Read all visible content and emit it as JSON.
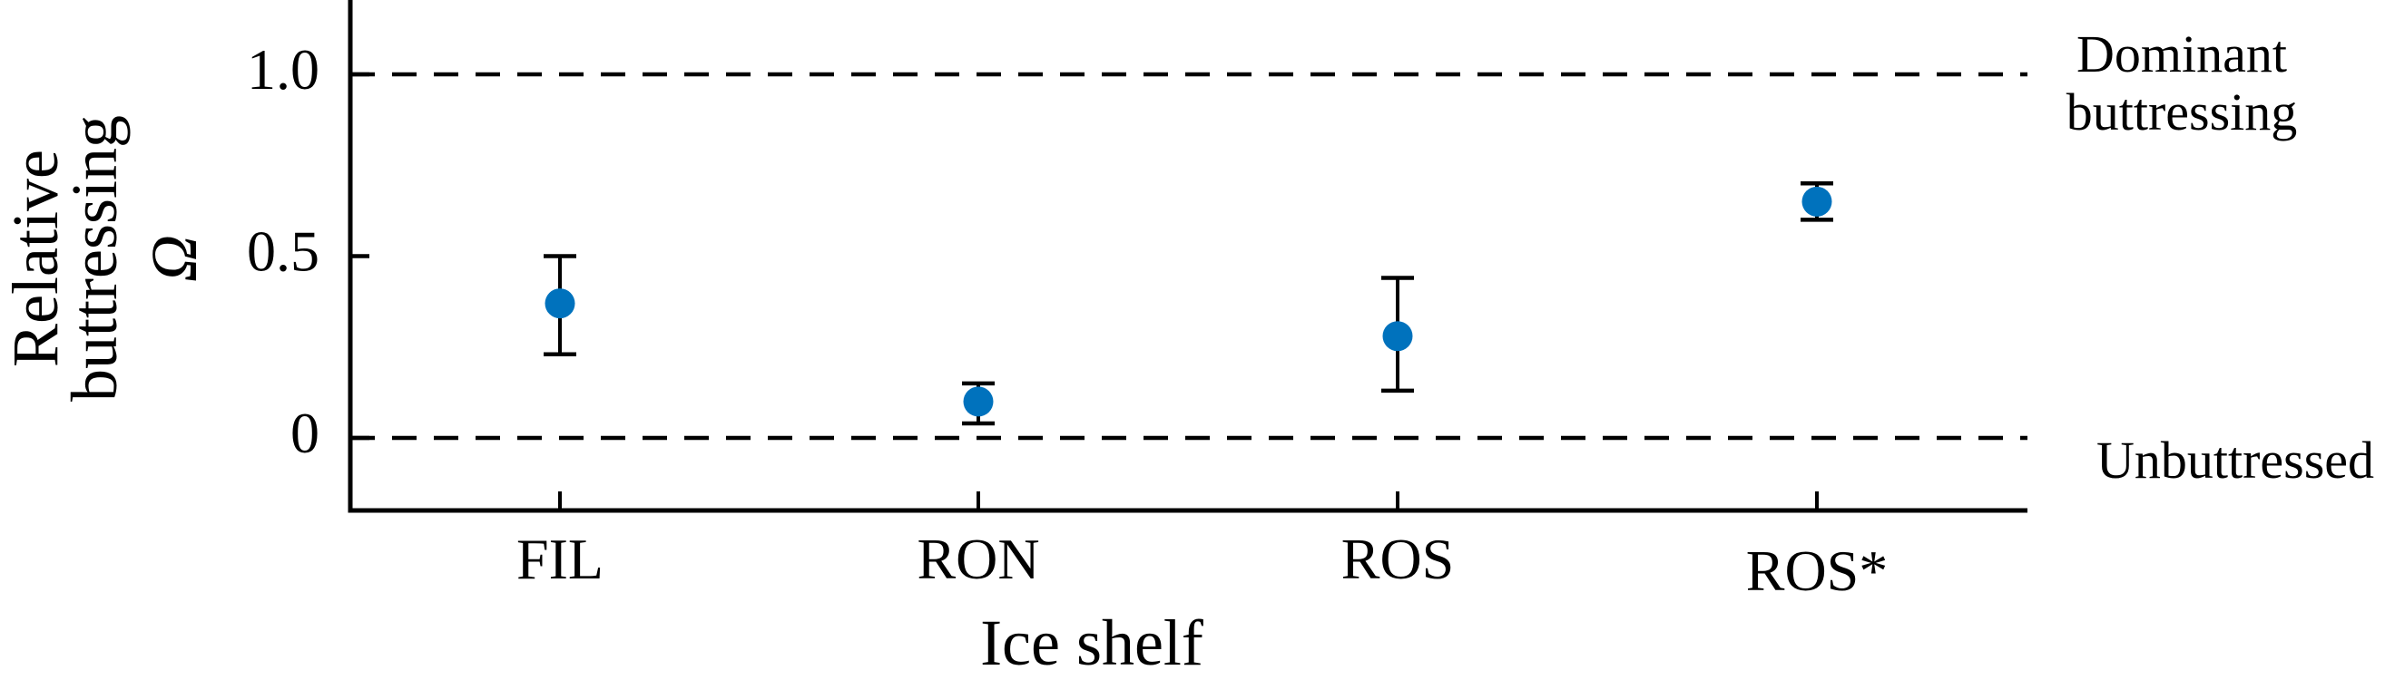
{
  "chart_data": {
    "type": "scatter",
    "subtype": "errorbar",
    "title": "",
    "xlabel": "Ice shelf",
    "ylabel_lines": [
      "Relative",
      "buttressing",
      "Ω"
    ],
    "ylabel": "Relative buttressing Ω",
    "categories": [
      "FIL",
      "RON",
      "ROS",
      "ROS*"
    ],
    "series": [
      {
        "name": "Relative buttressing",
        "color": "#0072BD",
        "values": [
          0.37,
          0.1,
          0.28,
          0.65
        ],
        "err_upper": [
          0.5,
          0.15,
          0.44,
          0.7
        ],
        "err_lower": [
          0.23,
          0.04,
          0.13,
          0.6
        ]
      }
    ],
    "ylim": [
      -0.2,
      1.2
    ],
    "yticks": [
      0,
      0.5,
      1.0
    ],
    "ytick_labels": [
      "0",
      "0.5",
      "1.0"
    ],
    "grid": false,
    "legend": null,
    "reference_lines": [
      {
        "y": 1.0,
        "style": "dashed",
        "label_lines": [
          "Dominant",
          "buttressing"
        ],
        "label": "Dominant buttressing"
      },
      {
        "y": 0.0,
        "style": "dashed",
        "label_lines": [
          "Unbuttressed"
        ],
        "label": "Unbuttressed"
      }
    ]
  }
}
